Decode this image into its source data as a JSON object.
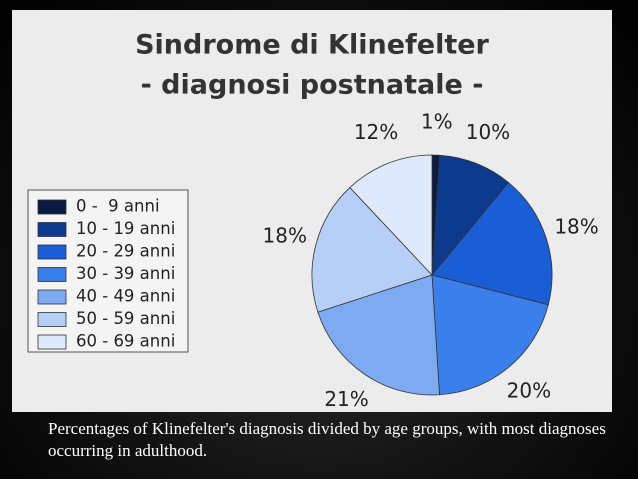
{
  "chart_data": {
    "type": "pie",
    "title": "Sindrome di Klinefelter",
    "subtitle": "- diagnosi postnatale -",
    "categories": [
      "0 -  9 anni",
      "10 - 19 anni",
      "20 - 29 anni",
      "30 - 39 anni",
      "40 - 49 anni",
      "50 - 59 anni",
      "60 - 69 anni"
    ],
    "values": [
      1,
      10,
      18,
      20,
      21,
      18,
      12
    ],
    "value_labels": [
      "1%",
      "10%",
      "18%",
      "20%",
      "21%",
      "18%",
      "12%"
    ],
    "colors": [
      "#0b1a3f",
      "#0d3a8c",
      "#1a5dd4",
      "#3b80ea",
      "#7eaaf2",
      "#b7cff6",
      "#dfe9fc"
    ],
    "legend": "left"
  },
  "caption": "Percentages of Klinefelter's diagnosis divided by age groups, with most diagnoses occurring in adulthood."
}
